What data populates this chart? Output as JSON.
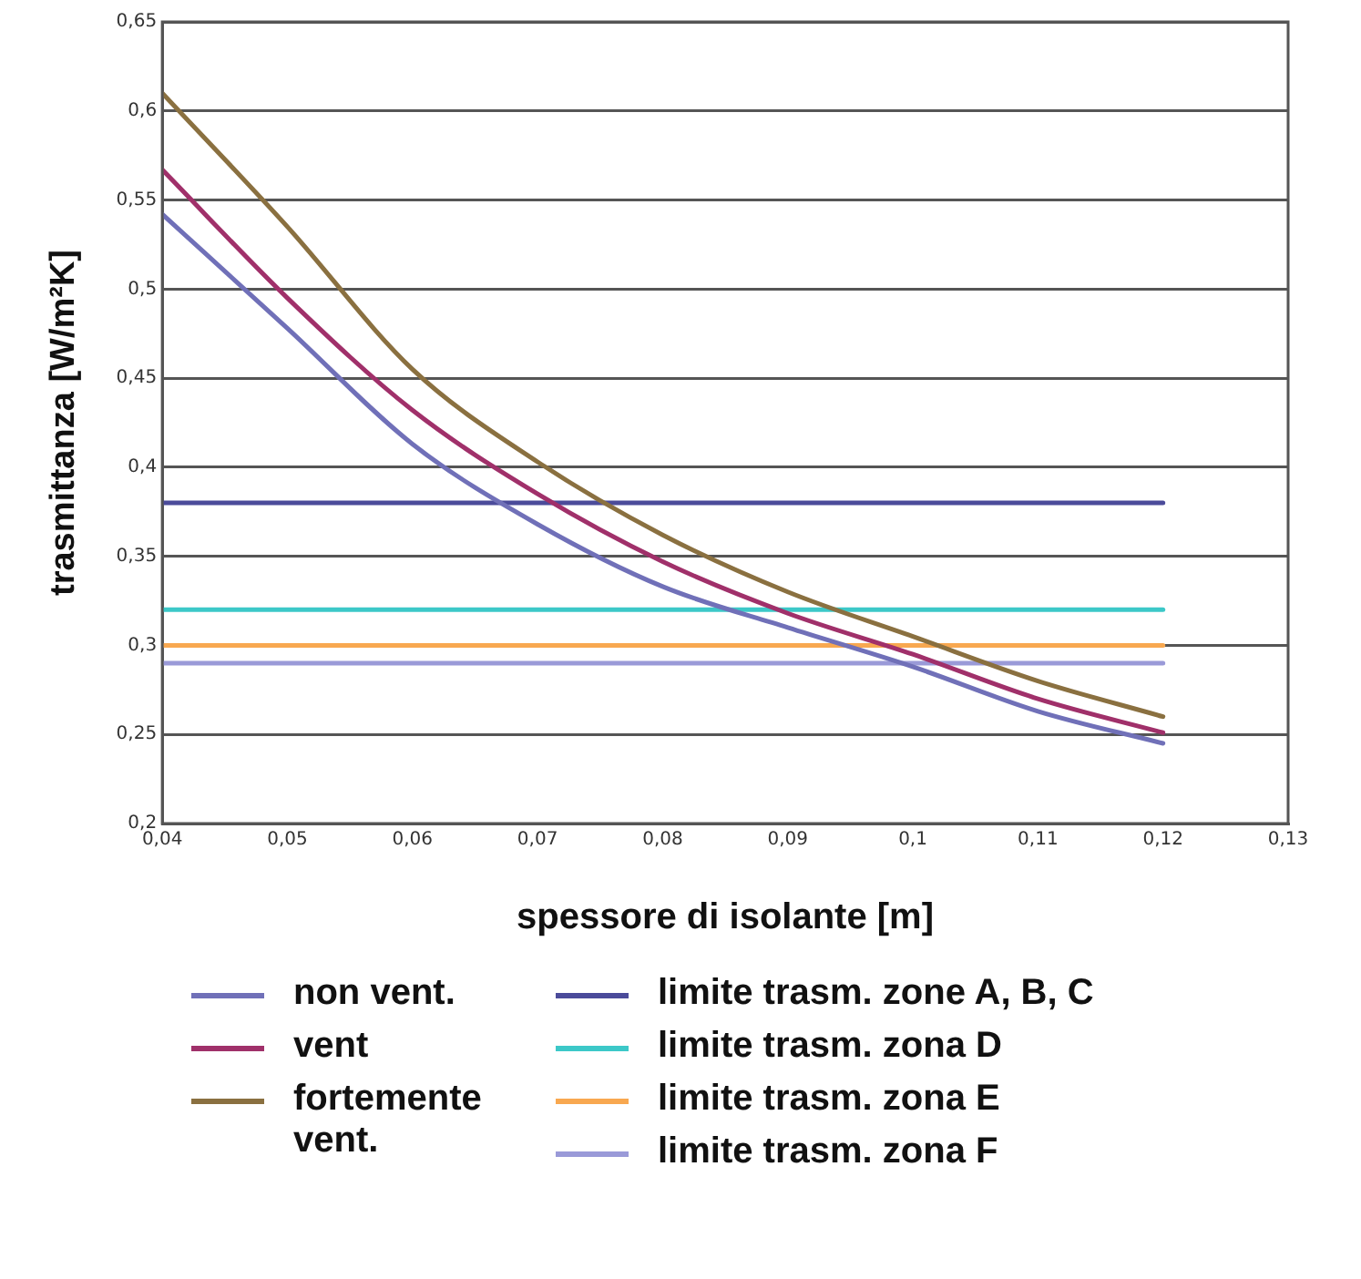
{
  "chart_data": {
    "type": "line",
    "xlabel": "spessore di isolante [m]",
    "ylabel": "trasmittanza [W/m²K]",
    "xlim": [
      0.04,
      0.13
    ],
    "xticks": [
      {
        "value": 0.04,
        "label": "0,04"
      },
      {
        "value": 0.05,
        "label": "0,05"
      },
      {
        "value": 0.06,
        "label": "0,06"
      },
      {
        "value": 0.07,
        "label": "0,07"
      },
      {
        "value": 0.08,
        "label": "0,08"
      },
      {
        "value": 0.09,
        "label": "0,09"
      },
      {
        "value": 0.1,
        "label": "0,1"
      },
      {
        "value": 0.11,
        "label": "0,11"
      },
      {
        "value": 0.12,
        "label": "0,12"
      },
      {
        "value": 0.13,
        "label": "0,13"
      }
    ],
    "ylim": [
      0.2,
      0.65
    ],
    "yticks": [
      {
        "value": 0.2,
        "label": "0,2"
      },
      {
        "value": 0.25,
        "label": "0,25"
      },
      {
        "value": 0.3,
        "label": "0,3"
      },
      {
        "value": 0.35,
        "label": "0,35"
      },
      {
        "value": 0.4,
        "label": "0,4"
      },
      {
        "value": 0.45,
        "label": "0,45"
      },
      {
        "value": 0.5,
        "label": "0,5"
      },
      {
        "value": 0.55,
        "label": "0,55"
      },
      {
        "value": 0.6,
        "label": "0,6"
      },
      {
        "value": 0.65,
        "label": "0,65"
      }
    ],
    "grid": "y",
    "legend": "bottom",
    "marker": "none",
    "line_style": "solid",
    "series": [
      {
        "name": "non vent.",
        "color": "#7070b8",
        "x": [
          0.04,
          0.05,
          0.06,
          0.07,
          0.08,
          0.09,
          0.1,
          0.11,
          0.12
        ],
        "values": [
          0.542,
          0.478,
          0.413,
          0.368,
          0.333,
          0.31,
          0.288,
          0.263,
          0.245
        ]
      },
      {
        "name": "vent",
        "color": "#a0306a",
        "x": [
          0.04,
          0.05,
          0.06,
          0.07,
          0.08,
          0.09,
          0.1,
          0.11,
          0.12
        ],
        "values": [
          0.567,
          0.495,
          0.432,
          0.385,
          0.347,
          0.318,
          0.295,
          0.27,
          0.251
        ]
      },
      {
        "name": "fortemente vent.",
        "color": "#8a7040",
        "x": [
          0.04,
          0.05,
          0.06,
          0.07,
          0.08,
          0.09,
          0.1,
          0.11,
          0.12
        ],
        "values": [
          0.61,
          0.535,
          0.455,
          0.403,
          0.362,
          0.33,
          0.305,
          0.28,
          0.26
        ]
      },
      {
        "name": "limite trasm. zone A, B, C",
        "color": "#4b4b9a",
        "x": [
          0.04,
          0.12
        ],
        "values": [
          0.38,
          0.38
        ]
      },
      {
        "name": "limite trasm. zona D",
        "color": "#3cc8c8",
        "x": [
          0.04,
          0.12
        ],
        "values": [
          0.32,
          0.32
        ]
      },
      {
        "name": "limite trasm. zona E",
        "color": "#f8a850",
        "x": [
          0.04,
          0.12
        ],
        "values": [
          0.3,
          0.3
        ]
      },
      {
        "name": "limite trasm. zona F",
        "color": "#9a9ad8",
        "x": [
          0.04,
          0.12
        ],
        "values": [
          0.29,
          0.29
        ]
      }
    ]
  }
}
